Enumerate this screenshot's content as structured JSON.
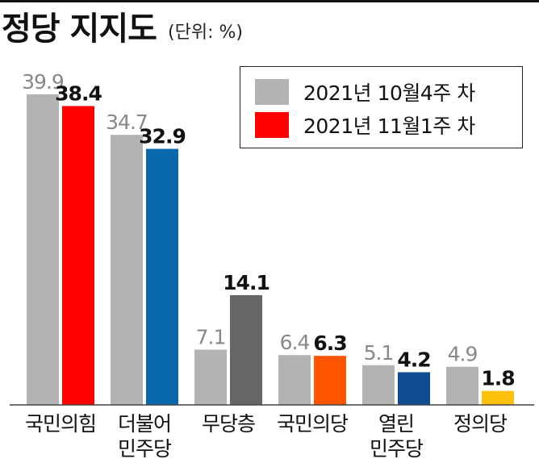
{
  "title": "정당 지지도",
  "unit": "(단위: %)",
  "colors": {
    "previous": "#b3b3b3",
    "previous_label": "#888888",
    "current_label": "#111111",
    "baseline": "#444444"
  },
  "chart_data": {
    "type": "bar",
    "title": "정당 지지도",
    "unit": "(단위: %)",
    "categories": [
      "국민의힘",
      "더불어\n민주당",
      "무당층",
      "국민의당",
      "열린\n민주당",
      "정의당"
    ],
    "series": [
      {
        "name": "2021년 10월4주 차",
        "values": [
          39.9,
          34.7,
          7.1,
          6.4,
          5.1,
          4.9
        ],
        "color": "#b3b3b3"
      },
      {
        "name": "2021년 11월1주 차",
        "values": [
          38.4,
          32.9,
          14.1,
          6.3,
          4.2,
          1.8
        ],
        "color": "#ff0000",
        "bar_colors": [
          "#ff0000",
          "#0a68ad",
          "#666666",
          "#ff5500",
          "#0f4c92",
          "#fbc10c"
        ]
      }
    ],
    "ylim": [
      0,
      42
    ],
    "grid": false,
    "legend": "top-right"
  }
}
